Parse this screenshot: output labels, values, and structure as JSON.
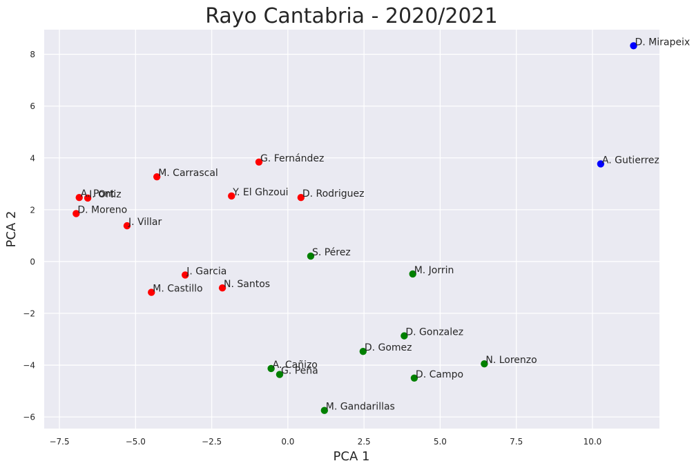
{
  "chart_data": {
    "type": "scatter",
    "title": "Rayo Cantabria - 2020/2021",
    "xlabel": "PCA 1",
    "ylabel": "PCA 2",
    "xlim": [
      -8.0,
      12.2
    ],
    "ylim": [
      -6.45,
      8.95
    ],
    "xticks": [
      -7.5,
      -5.0,
      -2.5,
      0.0,
      2.5,
      5.0,
      7.5,
      10.0
    ],
    "xtick_labels": [
      "−7.5",
      "−5.0",
      "−2.5",
      "0.0",
      "2.5",
      "5.0",
      "7.5",
      "10.0"
    ],
    "yticks": [
      -6,
      -4,
      -2,
      0,
      2,
      4,
      6,
      8
    ],
    "ytick_labels": [
      "−6",
      "−4",
      "−2",
      "0",
      "2",
      "4",
      "6",
      "8"
    ],
    "grid": true,
    "background": "#eaeaf2",
    "points": [
      {
        "label": "D. Mirapeix",
        "x": 11.35,
        "y": 8.33,
        "color": "#0000ff"
      },
      {
        "label": "A. Gutierrez",
        "x": 10.27,
        "y": 3.77,
        "color": "#0000ff"
      },
      {
        "label": "G. Fernández",
        "x": -0.95,
        "y": 3.84,
        "color": "#ff0000"
      },
      {
        "label": "M. Carrascal",
        "x": -4.3,
        "y": 3.27,
        "color": "#ff0000"
      },
      {
        "label": "Y. El Ghzoui",
        "x": -1.85,
        "y": 2.53,
        "color": "#ff0000"
      },
      {
        "label": "D. Rodriguez",
        "x": 0.43,
        "y": 2.47,
        "color": "#ff0000"
      },
      {
        "label": "A. Pont",
        "x": -6.85,
        "y": 2.47,
        "color": "#ff0000"
      },
      {
        "label": "I. Ortiz",
        "x": -6.57,
        "y": 2.45,
        "color": "#ff0000"
      },
      {
        "label": "D. Moreno",
        "x": -6.95,
        "y": 1.85,
        "color": "#ff0000"
      },
      {
        "label": "J. Villar",
        "x": -5.28,
        "y": 1.38,
        "color": "#ff0000"
      },
      {
        "label": "J. Garcia",
        "x": -3.37,
        "y": -0.52,
        "color": "#ff0000"
      },
      {
        "label": "N. Santos",
        "x": -2.15,
        "y": -1.02,
        "color": "#ff0000"
      },
      {
        "label": "M. Castillo",
        "x": -4.48,
        "y": -1.19,
        "color": "#ff0000"
      },
      {
        "label": "S. Pérez",
        "x": 0.75,
        "y": 0.21,
        "color": "#008000"
      },
      {
        "label": "M. Jorrin",
        "x": 4.1,
        "y": -0.48,
        "color": "#008000"
      },
      {
        "label": "D. Gonzalez",
        "x": 3.82,
        "y": -2.87,
        "color": "#008000"
      },
      {
        "label": "D. Gomez",
        "x": 2.47,
        "y": -3.47,
        "color": "#008000"
      },
      {
        "label": "N. Lorenzo",
        "x": 6.45,
        "y": -3.95,
        "color": "#008000"
      },
      {
        "label": "A. Cañizo",
        "x": -0.55,
        "y": -4.13,
        "color": "#008000"
      },
      {
        "label": "G. Peña",
        "x": -0.27,
        "y": -4.36,
        "color": "#008000"
      },
      {
        "label": "D. Campo",
        "x": 4.15,
        "y": -4.5,
        "color": "#008000"
      },
      {
        "label": "M. Gandarillas",
        "x": 1.2,
        "y": -5.75,
        "color": "#008000"
      }
    ]
  }
}
